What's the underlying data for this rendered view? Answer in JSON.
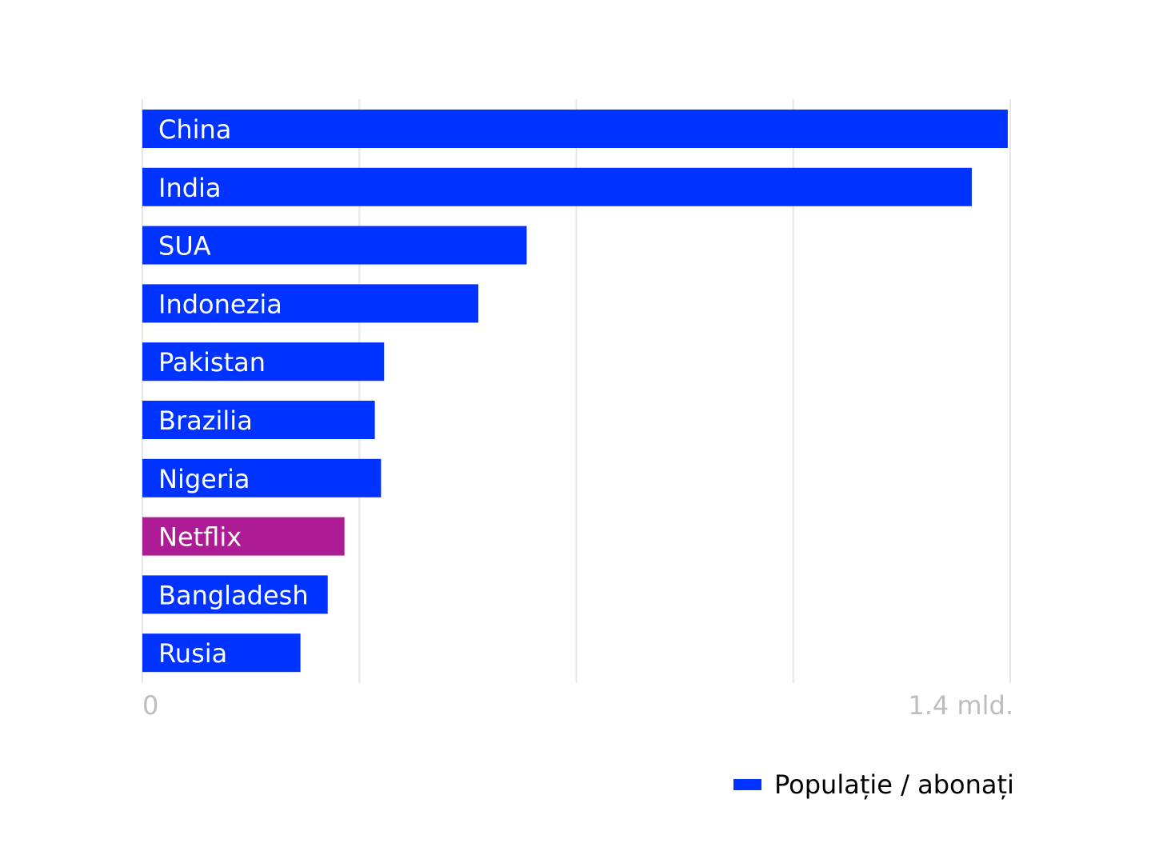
{
  "chart_data": {
    "type": "bar",
    "orientation": "horizontal",
    "unit": "mld.",
    "categories": [
      "China",
      "India",
      "SUA",
      "Indonezia",
      "Pakistan",
      "Brazilia",
      "Nigeria",
      "Netflix",
      "Bangladesh",
      "Rusia"
    ],
    "values": [
      1.396,
      1.338,
      0.62,
      0.542,
      0.39,
      0.375,
      0.385,
      0.326,
      0.299,
      0.255
    ],
    "highlight": "Netflix",
    "xlim": [
      0,
      1.4
    ],
    "x_ticks": [
      0,
      0.35,
      0.7,
      1.05,
      1.4
    ],
    "x_tick_labels": [
      "0",
      "1.4 mld."
    ],
    "grid": true,
    "legend": {
      "label": "Populație / abonați",
      "placement": "bottom-right"
    },
    "colors": {
      "bar": "#0033ff",
      "highlight": "#ad1c94",
      "grid": "#e6e6e6",
      "tick_text": "#bdbdbd"
    }
  }
}
